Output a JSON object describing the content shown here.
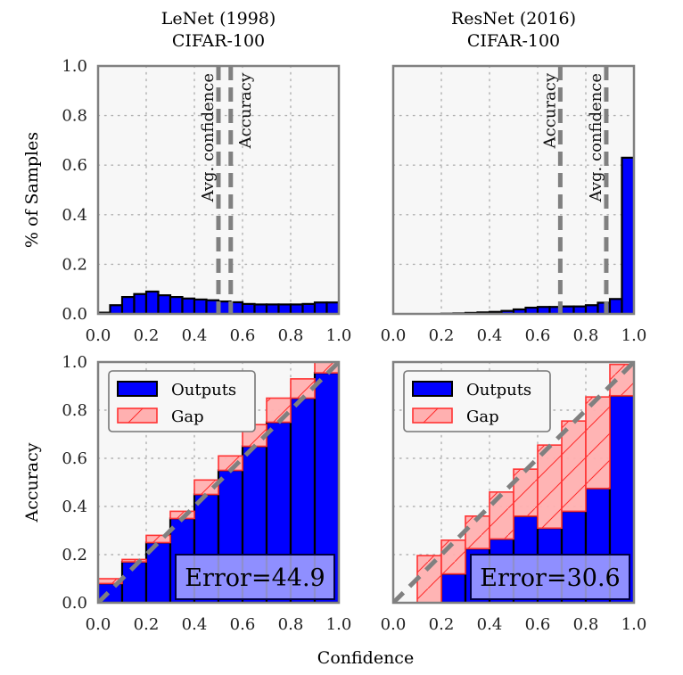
{
  "figure": {
    "shared_xlabel": "Confidence",
    "colors": {
      "outputs_fill": "#0000ff",
      "outputs_edge": "#000000",
      "gap_fill": "#ffb0b0",
      "gap_edge": "#ff3333",
      "diag": "#808080",
      "axes_bg": "#f7f7f7",
      "frame": "#808080",
      "error_box": "#b3b3ff"
    }
  },
  "chart_data": [
    {
      "type": "bar",
      "panel": "top-left",
      "title_line1": "LeNet (1998)",
      "title_line2": "CIFAR-100",
      "xlabel": "",
      "ylabel": "% of Samples",
      "xlim": [
        0,
        1
      ],
      "ylim": [
        0,
        1
      ],
      "xticks": [
        "0.0",
        "0.2",
        "0.4",
        "0.6",
        "0.8",
        "1.0"
      ],
      "yticks": [
        "0.0",
        "0.2",
        "0.4",
        "0.6",
        "0.8",
        "1.0"
      ],
      "grid": true,
      "bin_width": 0.05,
      "values": [
        0.005,
        0.035,
        0.068,
        0.08,
        0.09,
        0.075,
        0.068,
        0.062,
        0.058,
        0.055,
        0.05,
        0.047,
        0.04,
        0.038,
        0.038,
        0.038,
        0.038,
        0.04,
        0.046,
        0.046
      ],
      "vlines": [
        {
          "label": "Avg. confidence",
          "x": 0.5
        },
        {
          "label": "Accuracy",
          "x": 0.551
        }
      ]
    },
    {
      "type": "bar",
      "panel": "top-right",
      "title_line1": "ResNet (2016)",
      "title_line2": "CIFAR-100",
      "xlabel": "",
      "ylabel": "",
      "xlim": [
        0,
        1
      ],
      "ylim": [
        0,
        1
      ],
      "xticks": [
        "0.0",
        "0.2",
        "0.4",
        "0.6",
        "0.8",
        "1.0"
      ],
      "yticks": [],
      "grid": true,
      "bin_width": 0.05,
      "values": [
        0.0,
        0.0,
        0.0,
        0.0,
        0.001,
        0.002,
        0.004,
        0.006,
        0.008,
        0.012,
        0.018,
        0.025,
        0.028,
        0.028,
        0.03,
        0.03,
        0.035,
        0.045,
        0.06,
        0.63
      ],
      "vlines": [
        {
          "label": "Accuracy",
          "x": 0.694
        },
        {
          "label": "Avg. confidence",
          "x": 0.885
        }
      ]
    },
    {
      "type": "bar",
      "panel": "bottom-left",
      "xlabel": "",
      "ylabel": "Accuracy",
      "xlim": [
        0,
        1
      ],
      "ylim": [
        0,
        1
      ],
      "xticks": [
        "0.0",
        "0.2",
        "0.4",
        "0.6",
        "0.8",
        "1.0"
      ],
      "yticks": [
        "0.0",
        "0.2",
        "0.4",
        "0.6",
        "0.8",
        "1.0"
      ],
      "grid": true,
      "bin_width": 0.1,
      "series": [
        {
          "name": "Outputs",
          "values": [
            0.08,
            0.17,
            0.25,
            0.35,
            0.45,
            0.55,
            0.65,
            0.75,
            0.85,
            0.955
          ]
        },
        {
          "name": "Gap",
          "values_top": [
            0.1,
            0.18,
            0.28,
            0.38,
            0.51,
            0.61,
            0.74,
            0.85,
            0.93,
            1.0
          ]
        }
      ],
      "legend": [
        "Outputs",
        "Gap"
      ],
      "legend_position": "top-left",
      "annotation": "Error=44.9"
    },
    {
      "type": "bar",
      "panel": "bottom-right",
      "xlabel": "",
      "ylabel": "",
      "xlim": [
        0,
        1
      ],
      "ylim": [
        0,
        1
      ],
      "xticks": [
        "0.0",
        "0.2",
        "0.4",
        "0.6",
        "0.8",
        "1.0"
      ],
      "yticks": [],
      "grid": true,
      "bin_width": 0.1,
      "series": [
        {
          "name": "Outputs",
          "values": [
            0.0,
            0.0,
            0.12,
            0.225,
            0.265,
            0.36,
            0.31,
            0.38,
            0.475,
            0.86
          ]
        },
        {
          "name": "Gap",
          "values_top": [
            0.0,
            0.196,
            0.26,
            0.36,
            0.46,
            0.555,
            0.655,
            0.755,
            0.855,
            0.99
          ]
        }
      ],
      "legend": [
        "Outputs",
        "Gap"
      ],
      "legend_position": "top-left",
      "annotation": "Error=30.6"
    }
  ]
}
